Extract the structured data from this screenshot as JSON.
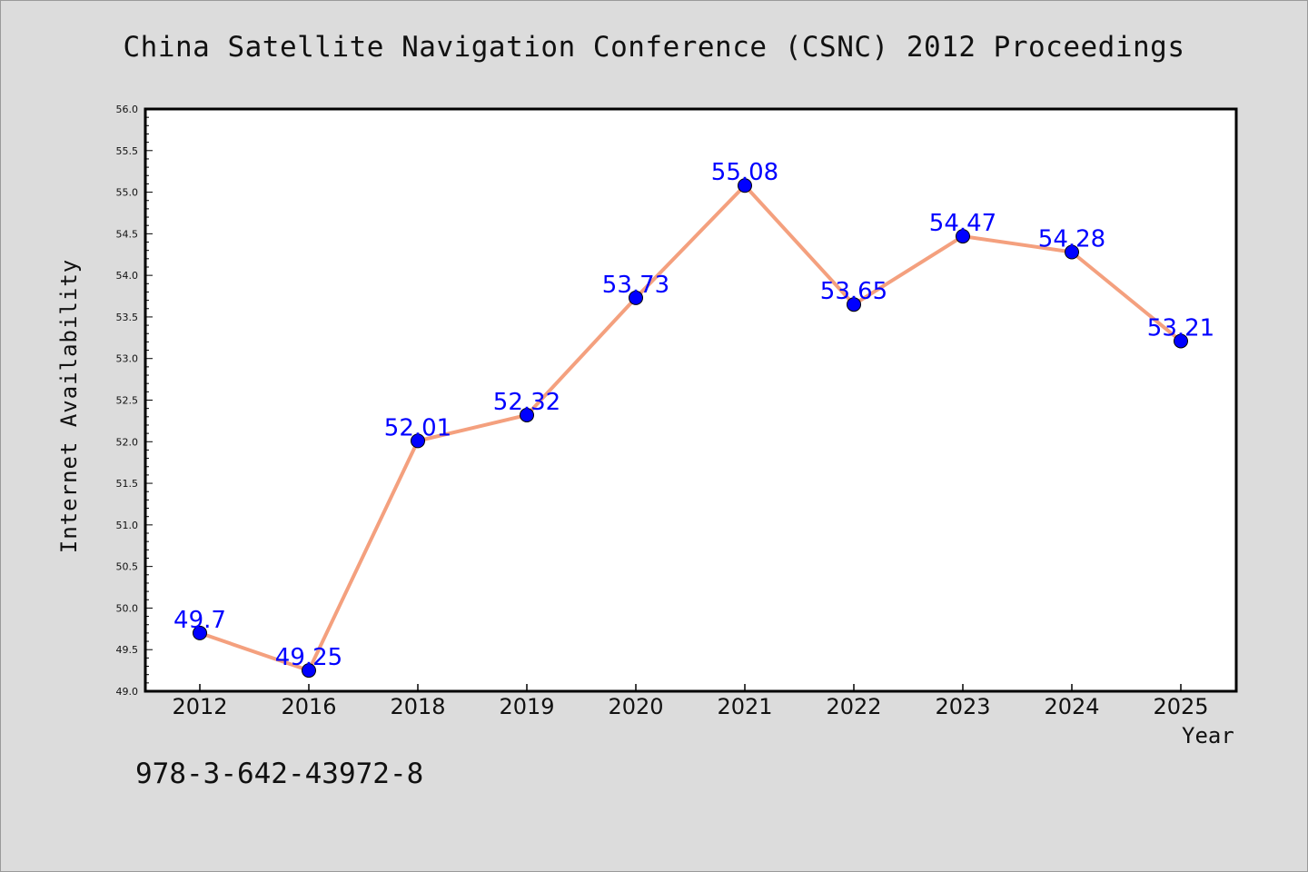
{
  "title": "China Satellite Navigation Conference (CSNC) 2012 Proceedings",
  "isbn": "978-3-642-43972-8",
  "colors": {
    "background": "#dcdcdc",
    "plot_background": "#ffffff",
    "line": "#f4a07e",
    "marker": "#0000ff",
    "data_label": "#0000ff"
  },
  "chart_data": {
    "type": "line",
    "categories": [
      "2012",
      "2016",
      "2018",
      "2019",
      "2020",
      "2021",
      "2022",
      "2023",
      "2024",
      "2025"
    ],
    "values": [
      49.7,
      49.25,
      52.01,
      52.32,
      53.73,
      55.08,
      53.65,
      54.47,
      54.28,
      53.21
    ],
    "value_labels": [
      "49.7",
      "49.25",
      "52.01",
      "52.32",
      "53.73",
      "55.08",
      "53.65",
      "54.47",
      "54.28",
      "53.21"
    ],
    "xlabel": "Year",
    "ylabel": "Internet Availability",
    "ylim": [
      49.0,
      56.0
    ],
    "yticks": [
      "49.0",
      "49.5",
      "50.0",
      "50.5",
      "51.0",
      "51.5",
      "52.0",
      "52.5",
      "53.0",
      "53.5",
      "54.0",
      "54.5",
      "55.0",
      "55.5",
      "56.0"
    ],
    "grid": false,
    "legend": "none"
  }
}
